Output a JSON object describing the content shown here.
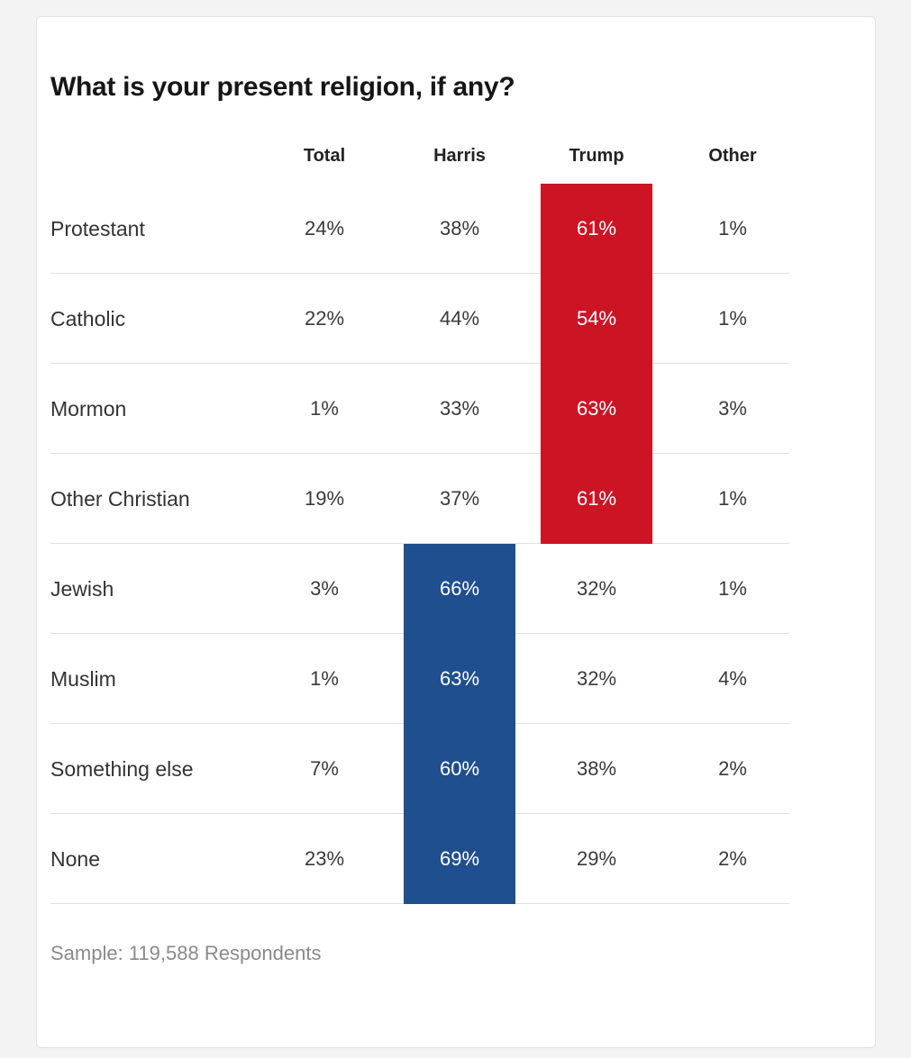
{
  "chart_data": {
    "type": "table",
    "title": "What is your present religion, if any?",
    "columns": [
      "Total",
      "Harris",
      "Trump",
      "Other"
    ],
    "rows": [
      {
        "label": "Protestant",
        "values": [
          "24%",
          "38%",
          "61%",
          "1%"
        ],
        "leader": "Trump"
      },
      {
        "label": "Catholic",
        "values": [
          "22%",
          "44%",
          "54%",
          "1%"
        ],
        "leader": "Trump"
      },
      {
        "label": "Mormon",
        "values": [
          "1%",
          "33%",
          "63%",
          "3%"
        ],
        "leader": "Trump"
      },
      {
        "label": "Other Christian",
        "values": [
          "19%",
          "37%",
          "61%",
          "1%"
        ],
        "leader": "Trump"
      },
      {
        "label": "Jewish",
        "values": [
          "3%",
          "66%",
          "32%",
          "1%"
        ],
        "leader": "Harris"
      },
      {
        "label": "Muslim",
        "values": [
          "1%",
          "63%",
          "32%",
          "4%"
        ],
        "leader": "Harris"
      },
      {
        "label": "Something else",
        "values": [
          "7%",
          "60%",
          "38%",
          "2%"
        ],
        "leader": "Harris"
      },
      {
        "label": "None",
        "values": [
          "23%",
          "69%",
          "29%",
          "2%"
        ],
        "leader": "Harris"
      }
    ],
    "highlight_colors": {
      "Harris": "#1f4f8f",
      "Trump": "#cc1424"
    },
    "footnote": "Sample: 119,588 Respondents"
  }
}
